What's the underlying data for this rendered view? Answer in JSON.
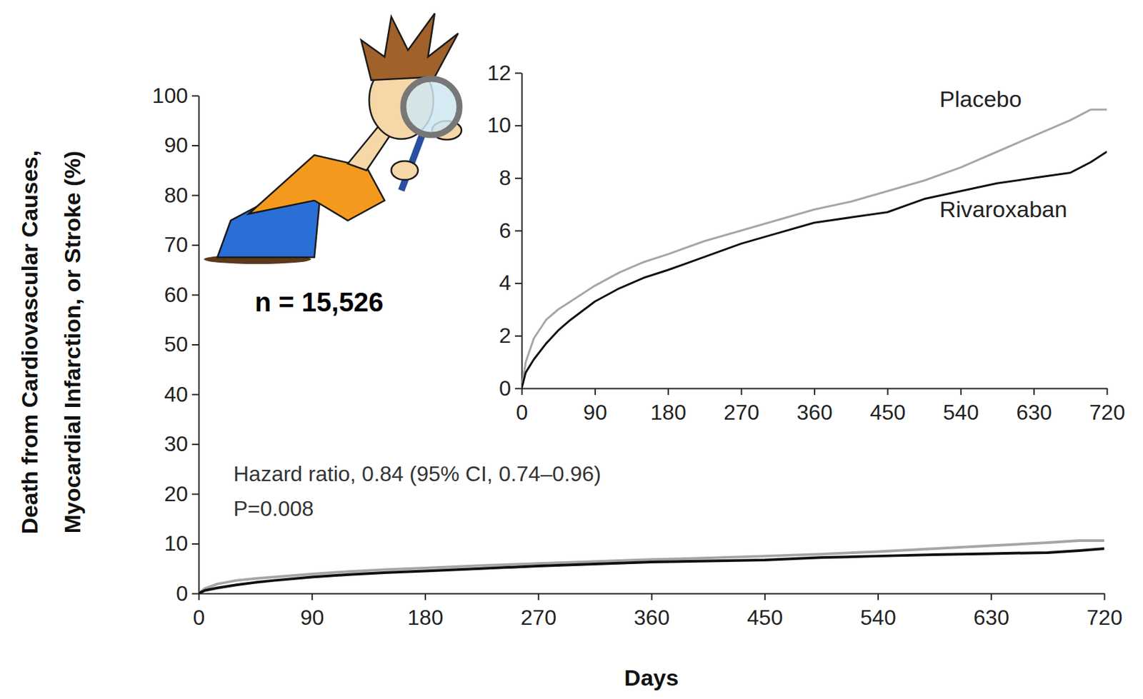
{
  "chart_data": [
    {
      "type": "line",
      "x_label": "Days",
      "y_label": "Death from Cardiovascular Causes, Myocardial Infarction, or Stroke (%)",
      "x": [
        0,
        5,
        15,
        30,
        45,
        60,
        90,
        120,
        150,
        180,
        225,
        270,
        315,
        360,
        405,
        450,
        495,
        540,
        585,
        630,
        675,
        700,
        720
      ],
      "series": [
        {
          "color": "#a6a6a6",
          "values": [
            0,
            1.0,
            1.9,
            2.6,
            3.0,
            3.3,
            3.9,
            4.4,
            4.8,
            5.1,
            5.6,
            6.0,
            6.4,
            6.8,
            7.1,
            7.5,
            7.9,
            8.4,
            9.0,
            9.6,
            10.2,
            10.6,
            10.6
          ]
        },
        {
          "color": "#111111",
          "values": [
            0,
            0.6,
            1.1,
            1.7,
            2.2,
            2.6,
            3.3,
            3.8,
            4.2,
            4.5,
            5.0,
            5.5,
            5.9,
            6.3,
            6.5,
            6.7,
            7.2,
            7.5,
            7.8,
            8.0,
            8.2,
            8.6,
            9.0
          ]
        }
      ],
      "xlim": [
        0,
        720
      ],
      "ylim": [
        0,
        100
      ],
      "xticks": [
        0,
        90,
        180,
        270,
        360,
        450,
        540,
        630,
        720
      ],
      "yticks": [
        0,
        10,
        20,
        30,
        40,
        50,
        60,
        70,
        80,
        90,
        100
      ],
      "grid": false,
      "annotations": [
        "n = 15,526",
        "Hazard ratio, 0.84 (95% CI, 0.74–0.96)",
        "P=0.008"
      ]
    },
    {
      "type": "line",
      "x": [
        0,
        5,
        15,
        30,
        45,
        60,
        90,
        120,
        150,
        180,
        225,
        270,
        315,
        360,
        405,
        450,
        495,
        540,
        585,
        630,
        675,
        700,
        720
      ],
      "series": [
        {
          "name": "Placebo",
          "color": "#a6a6a6",
          "values": [
            0,
            1.0,
            1.9,
            2.6,
            3.0,
            3.3,
            3.9,
            4.4,
            4.8,
            5.1,
            5.6,
            6.0,
            6.4,
            6.8,
            7.1,
            7.5,
            7.9,
            8.4,
            9.0,
            9.6,
            10.2,
            10.6,
            10.6
          ]
        },
        {
          "name": "Rivaroxaban",
          "color": "#111111",
          "values": [
            0,
            0.6,
            1.1,
            1.7,
            2.2,
            2.6,
            3.3,
            3.8,
            4.2,
            4.5,
            5.0,
            5.5,
            5.9,
            6.3,
            6.5,
            6.7,
            7.2,
            7.5,
            7.8,
            8.0,
            8.2,
            8.6,
            9.0
          ]
        }
      ],
      "xlim": [
        0,
        720
      ],
      "ylim": [
        0,
        12
      ],
      "xticks": [
        0,
        90,
        180,
        270,
        360,
        450,
        540,
        630,
        720
      ],
      "yticks": [
        0,
        2,
        4,
        6,
        8,
        10,
        12
      ],
      "grid": false
    }
  ]
}
